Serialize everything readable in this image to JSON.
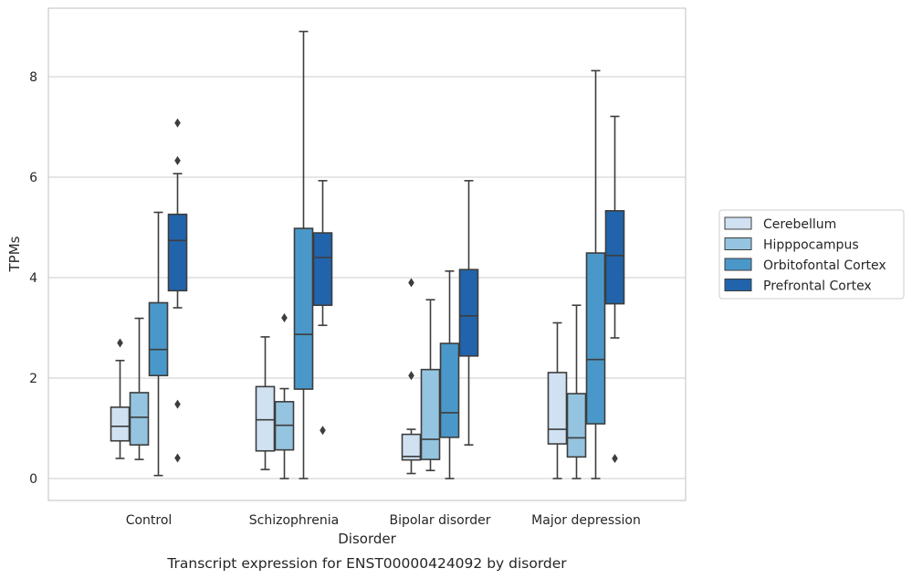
{
  "chart_data": {
    "type": "box",
    "title": "",
    "caption": "Transcript expression for ENST00000424092 by disorder",
    "xlabel": "Disorder",
    "ylabel": "TPMs",
    "ylim": [
      -0.4,
      9.3
    ],
    "yticks": [
      0,
      2,
      4,
      6,
      8
    ],
    "grid": true,
    "legend_position": "right",
    "categories": [
      "Control",
      "Schizophrenia",
      "Bipolar disorder",
      "Major depression"
    ],
    "series": [
      {
        "name": "Cerebellum",
        "color": "#d0e1f2",
        "boxes": [
          {
            "whisker_low": 0.4,
            "q1": 0.75,
            "median": 1.04,
            "q3": 1.42,
            "whisker_high": 2.35,
            "outliers": [
              2.7
            ]
          },
          {
            "whisker_low": 0.18,
            "q1": 0.55,
            "median": 1.17,
            "q3": 1.83,
            "whisker_high": 2.82,
            "outliers": []
          },
          {
            "whisker_low": 0.1,
            "q1": 0.37,
            "median": 0.44,
            "q3": 0.88,
            "whisker_high": 0.98,
            "outliers": [
              2.05,
              3.9
            ]
          },
          {
            "whisker_low": 0.0,
            "q1": 0.69,
            "median": 0.98,
            "q3": 2.11,
            "whisker_high": 3.1,
            "outliers": []
          }
        ]
      },
      {
        "name": "Hipppocampus",
        "color": "#94c4df",
        "boxes": [
          {
            "whisker_low": 0.38,
            "q1": 0.67,
            "median": 1.22,
            "q3": 1.71,
            "whisker_high": 3.19,
            "outliers": []
          },
          {
            "whisker_low": 0.0,
            "q1": 0.57,
            "median": 1.06,
            "q3": 1.53,
            "whisker_high": 1.79,
            "outliers": [
              3.2
            ]
          },
          {
            "whisker_low": 0.16,
            "q1": 0.38,
            "median": 0.78,
            "q3": 2.17,
            "whisker_high": 3.56,
            "outliers": []
          },
          {
            "whisker_low": 0.0,
            "q1": 0.43,
            "median": 0.81,
            "q3": 1.69,
            "whisker_high": 3.45,
            "outliers": []
          }
        ]
      },
      {
        "name": "Orbitofontal Cortex",
        "color": "#4a98c9",
        "boxes": [
          {
            "whisker_low": 0.06,
            "q1": 2.05,
            "median": 2.57,
            "q3": 3.5,
            "whisker_high": 5.3,
            "outliers": []
          },
          {
            "whisker_low": 0.0,
            "q1": 1.78,
            "median": 2.87,
            "q3": 4.98,
            "whisker_high": 8.9,
            "outliers": []
          },
          {
            "whisker_low": 0.0,
            "q1": 0.82,
            "median": 1.31,
            "q3": 2.69,
            "whisker_high": 4.13,
            "outliers": []
          },
          {
            "whisker_low": 0.0,
            "q1": 1.09,
            "median": 2.37,
            "q3": 4.49,
            "whisker_high": 8.12,
            "outliers": []
          }
        ]
      },
      {
        "name": "Prefrontal Cortex",
        "color": "#2164ab",
        "boxes": [
          {
            "whisker_low": 3.4,
            "q1": 3.74,
            "median": 4.74,
            "q3": 5.26,
            "whisker_high": 6.07,
            "outliers": [
              1.48,
              0.41,
              6.33,
              7.08
            ]
          },
          {
            "whisker_low": 3.05,
            "q1": 3.45,
            "median": 4.4,
            "q3": 4.89,
            "whisker_high": 5.93,
            "outliers": [
              0.96
            ]
          },
          {
            "whisker_low": 0.67,
            "q1": 2.44,
            "median": 3.24,
            "q3": 4.16,
            "whisker_high": 5.93,
            "outliers": []
          },
          {
            "whisker_low": 2.8,
            "q1": 3.48,
            "median": 4.44,
            "q3": 5.33,
            "whisker_high": 7.21,
            "outliers": [
              0.4
            ]
          }
        ]
      }
    ]
  }
}
